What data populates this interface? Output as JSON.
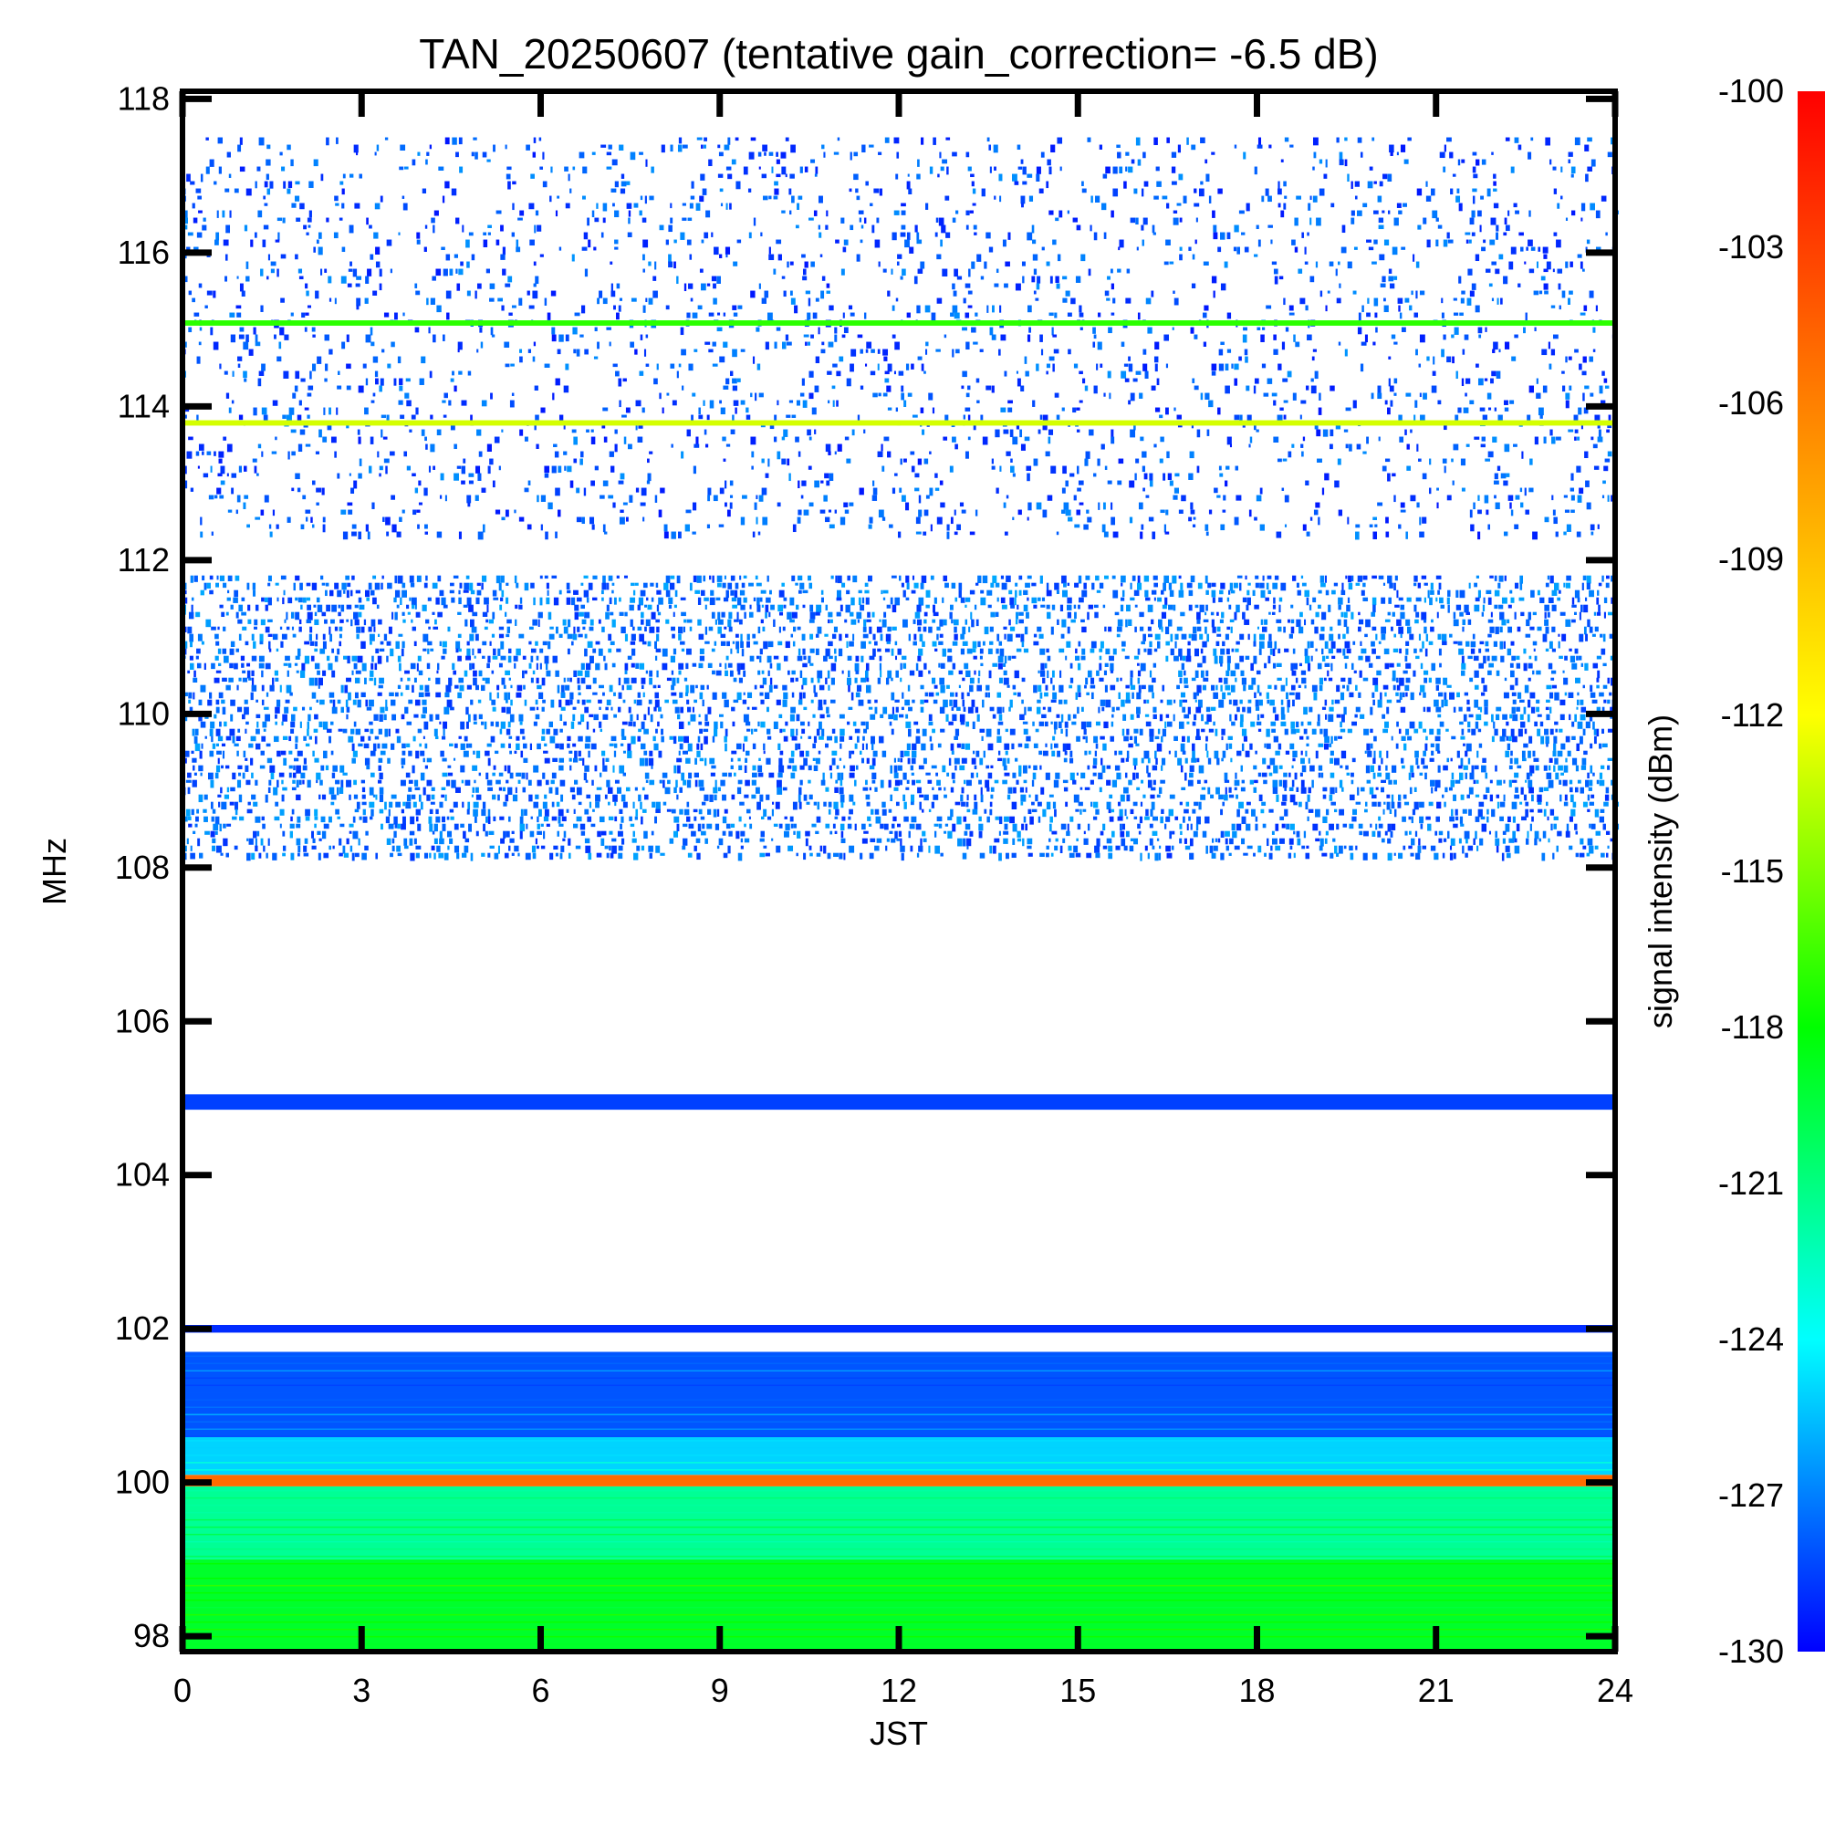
{
  "chart_data": {
    "type": "heatmap",
    "title": "TAN_20250607 (tentative gain_correction= -6.5 dB)",
    "xlabel": "JST",
    "ylabel": "MHz",
    "xlim": [
      0,
      24
    ],
    "ylim": [
      97.8,
      118.1
    ],
    "x_ticks": [
      "0",
      "3",
      "6",
      "9",
      "12",
      "15",
      "18",
      "21",
      "24"
    ],
    "y_ticks": [
      "98",
      "100",
      "102",
      "104",
      "106",
      "108",
      "110",
      "112",
      "114",
      "116",
      "118"
    ],
    "colorbar": {
      "label": "signal intensity (dBm)",
      "range": [
        -130,
        -100
      ],
      "ticks": [
        "-100",
        "-103",
        "-106",
        "-109",
        "-112",
        "-115",
        "-118",
        "-121",
        "-124",
        "-127",
        "-130"
      ],
      "colors": [
        "#0000ff",
        "#00ffff",
        "#00ff00",
        "#ffff00",
        "#ff8000",
        "#ff0000"
      ]
    },
    "bands": [
      {
        "from_mhz": 97.8,
        "to_mhz": 99.0,
        "level_dbm": -119,
        "pattern": "continuous"
      },
      {
        "from_mhz": 99.0,
        "to_mhz": 99.95,
        "level_dbm": -121.5,
        "pattern": "continuous"
      },
      {
        "from_mhz": 99.95,
        "to_mhz": 100.1,
        "level_dbm": -105,
        "pattern": "continuous"
      },
      {
        "from_mhz": 100.1,
        "to_mhz": 100.6,
        "level_dbm": -125,
        "pattern": "continuous"
      },
      {
        "from_mhz": 100.6,
        "to_mhz": 101.7,
        "level_dbm": -128,
        "pattern": "continuous"
      },
      {
        "from_mhz": 101.95,
        "to_mhz": 102.05,
        "level_dbm": -129,
        "pattern": "continuous"
      },
      {
        "from_mhz": 104.85,
        "to_mhz": 105.05,
        "level_dbm": -128.5,
        "pattern": "continuous"
      },
      {
        "from_mhz": 108.1,
        "to_mhz": 111.8,
        "level_dbm": -129,
        "pattern": "dense"
      },
      {
        "from_mhz": 112.3,
        "to_mhz": 117.5,
        "level_dbm": -129.5,
        "pattern": "sparse"
      },
      {
        "from_mhz": 113.75,
        "to_mhz": 113.82,
        "level_dbm": -113,
        "pattern": "continuous"
      },
      {
        "from_mhz": 115.05,
        "to_mhz": 115.12,
        "level_dbm": -117,
        "pattern": "continuous"
      }
    ]
  }
}
